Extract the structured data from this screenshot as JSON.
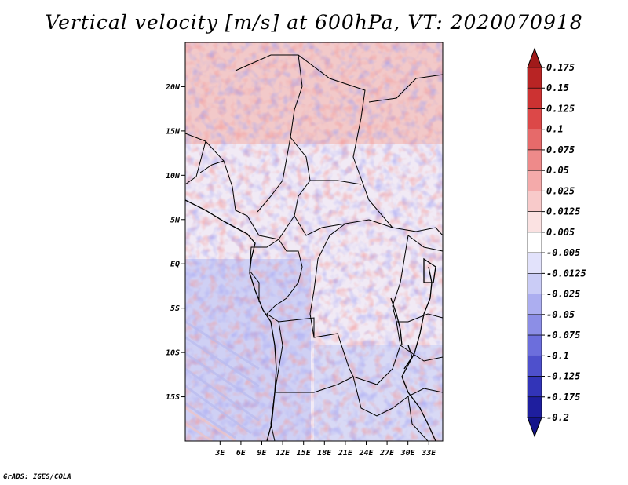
{
  "title": "Vertical velocity [m/s] at 600hPa, VT: 2020070918",
  "credit": "GrADS: IGES/COLA",
  "map": {
    "lon_range": [
      -2,
      35
    ],
    "lat_range": [
      -20,
      25
    ],
    "lon_ticks": [
      "3E",
      "6E",
      "9E",
      "12E",
      "15E",
      "18E",
      "21E",
      "24E",
      "27E",
      "30E",
      "33E"
    ],
    "lat_ticks": [
      "20N",
      "15N",
      "10N",
      "5N",
      "EQ",
      "5S",
      "10S",
      "15S"
    ],
    "lon_tick_values": [
      3,
      6,
      9,
      12,
      15,
      18,
      21,
      24,
      27,
      30,
      33
    ],
    "lat_tick_values": [
      20,
      15,
      10,
      5,
      0,
      -5,
      -10,
      -15
    ]
  },
  "colorbar": {
    "labels": [
      "0.175",
      "0.15",
      "0.125",
      "0.1",
      "0.075",
      "0.05",
      "0.025",
      "0.0125",
      "0.005",
      "-0.005",
      "-0.0125",
      "-0.025",
      "-0.05",
      "-0.075",
      "-0.1",
      "-0.125",
      "-0.175",
      "-0.2"
    ],
    "colors": [
      "#a01a1a",
      "#b82424",
      "#cc3232",
      "#dc4848",
      "#e66a6a",
      "#ee8a8a",
      "#f4aaaa",
      "#f8caca",
      "#fbe2e2",
      "#ffffff",
      "#e2e2fb",
      "#caccf6",
      "#acaef0",
      "#8c8ee6",
      "#6c6edc",
      "#4e50cc",
      "#3234b8",
      "#1e1e9e",
      "#14148a"
    ]
  }
}
